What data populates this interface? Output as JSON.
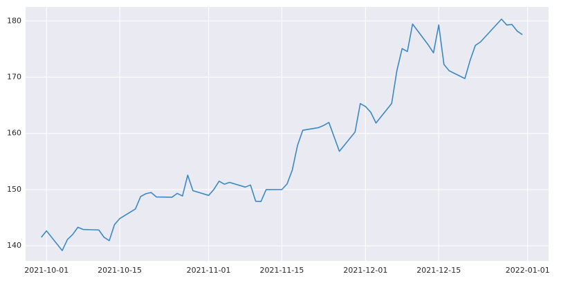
{
  "chart_data": {
    "type": "line",
    "x": [
      "2021-09-30",
      "2021-10-01",
      "2021-10-04",
      "2021-10-05",
      "2021-10-06",
      "2021-10-07",
      "2021-10-08",
      "2021-10-11",
      "2021-10-12",
      "2021-10-13",
      "2021-10-14",
      "2021-10-15",
      "2021-10-18",
      "2021-10-19",
      "2021-10-20",
      "2021-10-21",
      "2021-10-22",
      "2021-10-25",
      "2021-10-26",
      "2021-10-27",
      "2021-10-28",
      "2021-10-29",
      "2021-11-01",
      "2021-11-02",
      "2021-11-03",
      "2021-11-04",
      "2021-11-05",
      "2021-11-08",
      "2021-11-09",
      "2021-11-10",
      "2021-11-11",
      "2021-11-12",
      "2021-11-15",
      "2021-11-16",
      "2021-11-17",
      "2021-11-18",
      "2021-11-19",
      "2021-11-22",
      "2021-11-23",
      "2021-11-24",
      "2021-11-26",
      "2021-11-29",
      "2021-11-30",
      "2021-12-01",
      "2021-12-02",
      "2021-12-03",
      "2021-12-06",
      "2021-12-07",
      "2021-12-08",
      "2021-12-09",
      "2021-12-10",
      "2021-12-13",
      "2021-12-14",
      "2021-12-15",
      "2021-12-16",
      "2021-12-17",
      "2021-12-20",
      "2021-12-21",
      "2021-12-22",
      "2021-12-23",
      "2021-12-27",
      "2021-12-28",
      "2021-12-29",
      "2021-12-30",
      "2021-12-31"
    ],
    "values": [
      141.5,
      142.65,
      139.14,
      141.11,
      142.0,
      143.29,
      142.9,
      142.81,
      141.51,
      140.91,
      143.76,
      144.84,
      146.55,
      148.76,
      149.26,
      149.48,
      148.69,
      148.64,
      149.32,
      148.85,
      152.57,
      149.8,
      148.96,
      150.02,
      151.49,
      150.96,
      151.28,
      150.44,
      150.81,
      147.92,
      147.87,
      149.99,
      150.0,
      151.0,
      153.49,
      157.87,
      160.55,
      161.02,
      161.41,
      161.94,
      156.81,
      160.24,
      165.3,
      164.77,
      163.76,
      161.84,
      165.32,
      171.18,
      175.08,
      174.56,
      179.45,
      175.74,
      174.33,
      179.3,
      172.26,
      171.14,
      169.75,
      172.99,
      175.64,
      176.28,
      180.33,
      179.29,
      179.38,
      178.2,
      177.57
    ],
    "color": "#3a88c2",
    "xlim": [
      "2021-09-27",
      "2022-01-05"
    ],
    "xticks": [
      "2021-10-01",
      "2021-10-15",
      "2021-11-01",
      "2021-11-15",
      "2021-12-01",
      "2021-12-15",
      "2022-01-01"
    ],
    "ylim": [
      137.3,
      182.5
    ],
    "yticks": [
      140,
      150,
      160,
      170,
      180
    ],
    "grid": true
  }
}
